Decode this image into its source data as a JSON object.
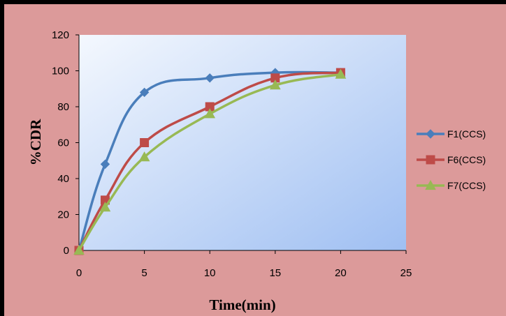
{
  "chart_data": {
    "type": "line",
    "title": "",
    "xlabel": "Time(min)",
    "ylabel": "%CDR",
    "xlim": [
      0,
      25
    ],
    "ylim": [
      0,
      120
    ],
    "xticks": [
      "0",
      "5",
      "10",
      "15",
      "20",
      "25"
    ],
    "yticks": [
      "0",
      "20",
      "40",
      "60",
      "80",
      "100",
      "120"
    ],
    "grid": false,
    "legend_position": "right",
    "background_color": "#dc9a9a",
    "series": [
      {
        "name": "F1(CCS)",
        "color": "#4a7ebb",
        "marker": "diamond",
        "x": [
          0,
          2,
          5,
          10,
          15,
          20
        ],
        "y": [
          0,
          48,
          88,
          96,
          99,
          99
        ]
      },
      {
        "name": "F6(CCS)",
        "color": "#be4b48",
        "marker": "square",
        "x": [
          0,
          2,
          5,
          10,
          15,
          20
        ],
        "y": [
          0,
          28,
          60,
          80,
          96,
          99
        ]
      },
      {
        "name": "F7(CCS)",
        "color": "#98b954",
        "marker": "triangle",
        "x": [
          0,
          2,
          5,
          10,
          15,
          20
        ],
        "y": [
          0,
          24,
          52,
          76,
          92,
          98
        ]
      }
    ]
  }
}
